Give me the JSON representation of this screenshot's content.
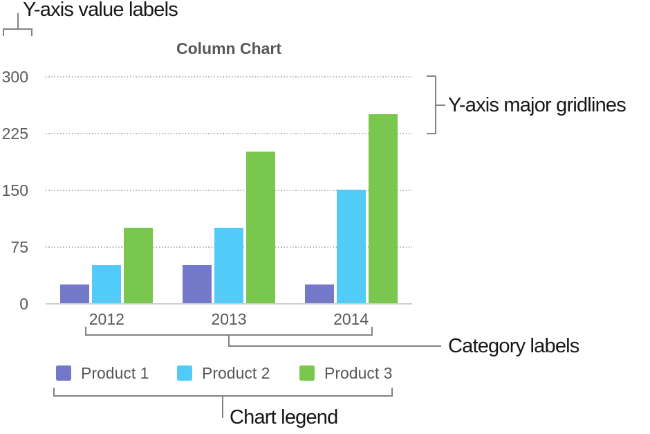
{
  "callouts": {
    "y_value_labels": "Y-axis value labels",
    "y_major_gridlines": "Y-axis major gridlines",
    "category_labels": "Category labels",
    "chart_legend": "Chart legend"
  },
  "chart_data": {
    "type": "bar",
    "title": "Column Chart",
    "categories": [
      "2012",
      "2013",
      "2014"
    ],
    "series": [
      {
        "name": "Product 1",
        "color": "#7378c8",
        "values": [
          25,
          50,
          25
        ]
      },
      {
        "name": "Product 2",
        "color": "#52cbf8",
        "values": [
          50,
          100,
          150
        ]
      },
      {
        "name": "Product 3",
        "color": "#7ac74e",
        "values": [
          100,
          200,
          250
        ]
      }
    ],
    "y_ticks": [
      0,
      75,
      150,
      225,
      300
    ],
    "ylim": [
      0,
      300
    ],
    "gridlines": "dotted horizontal at major ticks",
    "legend_position": "bottom"
  },
  "colors": {
    "chart_text": "#58585a",
    "callout_text": "#161618",
    "bracket_line": "#828285",
    "gridline": "#b7b7b8",
    "axis_line": "#cdcdd0"
  }
}
